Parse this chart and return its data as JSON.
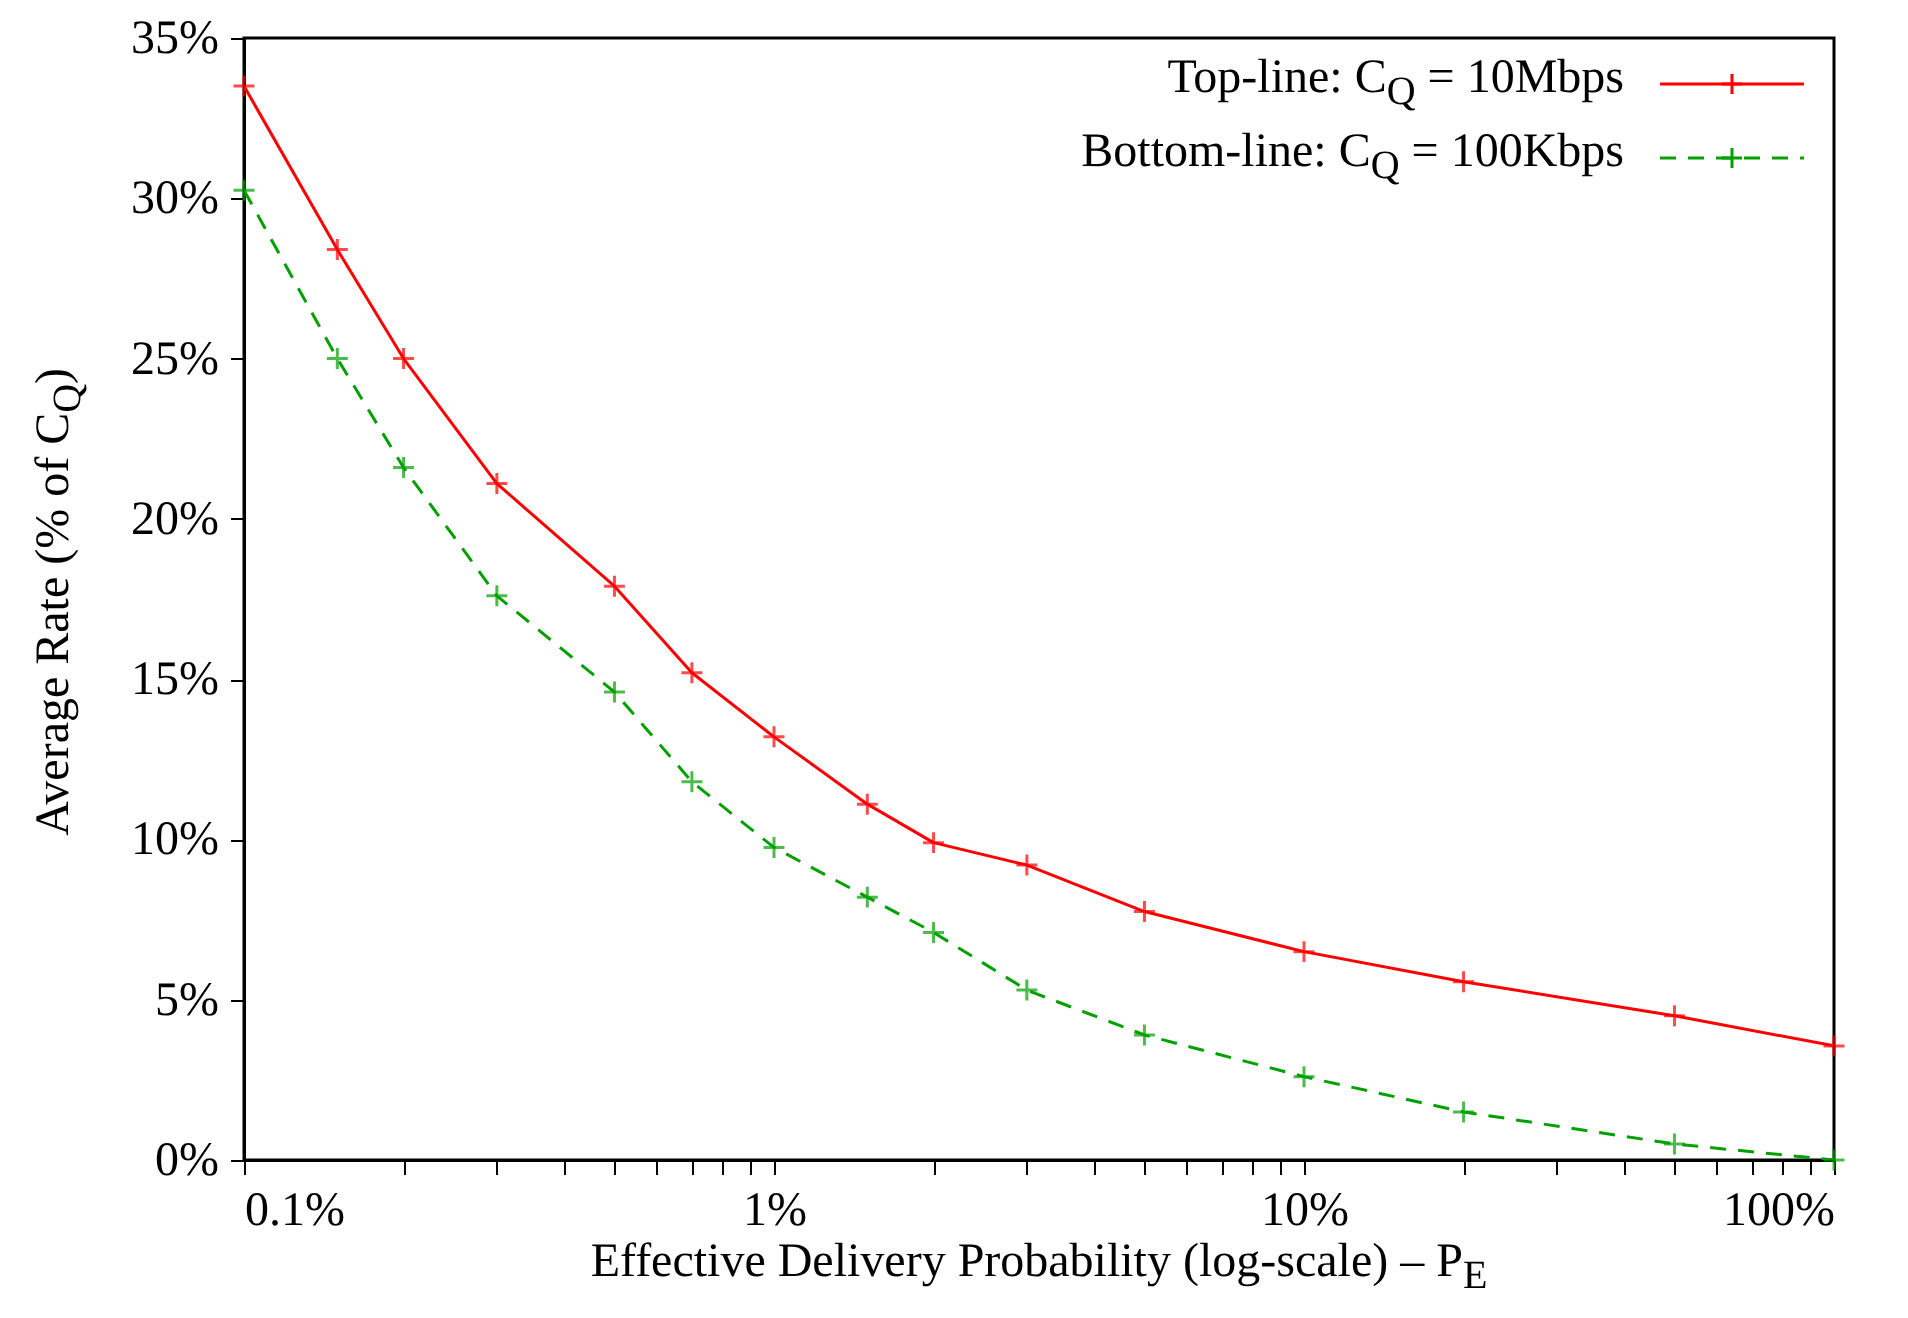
{
  "chart_data": {
    "type": "line",
    "xlabel": "Effective Delivery Probability (log-scale) – P$_{E}$",
    "ylabel": "Average Rate (% of C$_{Q}$)",
    "log": "x",
    "legend": "top right",
    "grid": false,
    "x": [
      0.1,
      0.15,
      0.2,
      0.3,
      0.5,
      0.7,
      1,
      1.5,
      2,
      3,
      5,
      10,
      20,
      50,
      100
    ],
    "series": [
      {
        "name": "Top-line: C$_{Q}$ = 10Mbps",
        "color": "#ff0000",
        "marker": "cross",
        "line_style": "solid",
        "values": [
          33.5,
          28.4,
          25.0,
          21.1,
          17.9,
          15.2,
          13.2,
          11.1,
          9.9,
          9.2,
          7.75,
          6.5,
          5.56,
          4.5,
          3.56
        ]
      },
      {
        "name": "Bottom-line: C$_{Q}$ = 100Kbps",
        "color": "#00a000",
        "marker": "cross",
        "line_style": "dashed",
        "values": [
          30.25,
          25.0,
          21.6,
          17.6,
          14.6,
          11.8,
          9.75,
          8.2,
          7.1,
          5.3,
          3.9,
          2.6,
          1.5,
          0.5,
          0
        ]
      }
    ],
    "xlim": [
      0.1,
      100
    ],
    "xticks": [
      {
        "value": 0.1,
        "label": "0.1%"
      },
      {
        "value": 0.2,
        "label": null
      },
      {
        "value": 0.3,
        "label": null
      },
      {
        "value": 0.4,
        "label": null
      },
      {
        "value": 0.5,
        "label": null
      },
      {
        "value": 0.6,
        "label": null
      },
      {
        "value": 0.7,
        "label": null
      },
      {
        "value": 0.8,
        "label": null
      },
      {
        "value": 0.9,
        "label": null
      },
      {
        "value": 1,
        "label": "1%"
      },
      {
        "value": 2,
        "label": null
      },
      {
        "value": 3,
        "label": null
      },
      {
        "value": 4,
        "label": null
      },
      {
        "value": 5,
        "label": null
      },
      {
        "value": 6,
        "label": null
      },
      {
        "value": 7,
        "label": null
      },
      {
        "value": 8,
        "label": null
      },
      {
        "value": 9,
        "label": null
      },
      {
        "value": 10,
        "label": "10%"
      },
      {
        "value": 20,
        "label": null
      },
      {
        "value": 30,
        "label": null
      },
      {
        "value": 40,
        "label": null
      },
      {
        "value": 50,
        "label": null
      },
      {
        "value": 60,
        "label": null
      },
      {
        "value": 70,
        "label": null
      },
      {
        "value": 80,
        "label": null
      },
      {
        "value": 90,
        "label": null
      },
      {
        "value": 100,
        "label": "100%"
      }
    ],
    "ylim": [
      0,
      35
    ],
    "yticks": [
      {
        "value": 0,
        "label": "0%"
      },
      {
        "value": 5,
        "label": "5%"
      },
      {
        "value": 10,
        "label": "10%"
      },
      {
        "value": 15,
        "label": "15%"
      },
      {
        "value": 20,
        "label": "20%"
      },
      {
        "value": 25,
        "label": "25%"
      },
      {
        "value": 30,
        "label": "30%"
      },
      {
        "value": 35,
        "label": "35%"
      }
    ]
  }
}
